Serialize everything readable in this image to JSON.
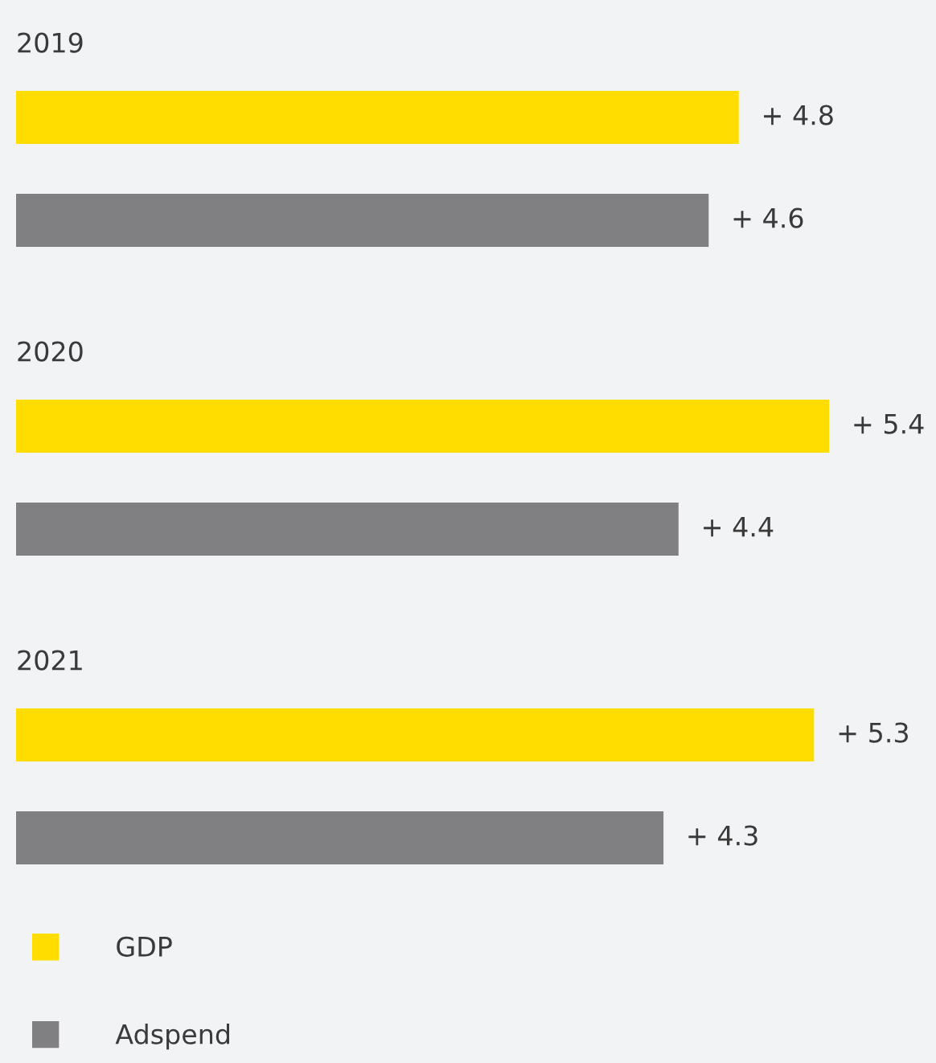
{
  "chart_data": {
    "type": "bar",
    "orientation": "horizontal",
    "categories": [
      "2019",
      "2020",
      "2021"
    ],
    "xlim": [
      0,
      6.11
    ],
    "series": [
      {
        "name": "GDP",
        "color": "#ffdd00",
        "values": [
          4.8,
          5.4,
          5.3
        ],
        "value_labels": [
          "+ 4.8",
          "+ 5.4",
          "+ 5.3"
        ]
      },
      {
        "name": "Adspend",
        "color": "#808083",
        "values": [
          4.6,
          4.4,
          4.3
        ],
        "value_labels": [
          "+ 4.6",
          "+ 4.4",
          "+ 4.3"
        ]
      }
    ],
    "legend": "bottom left"
  }
}
